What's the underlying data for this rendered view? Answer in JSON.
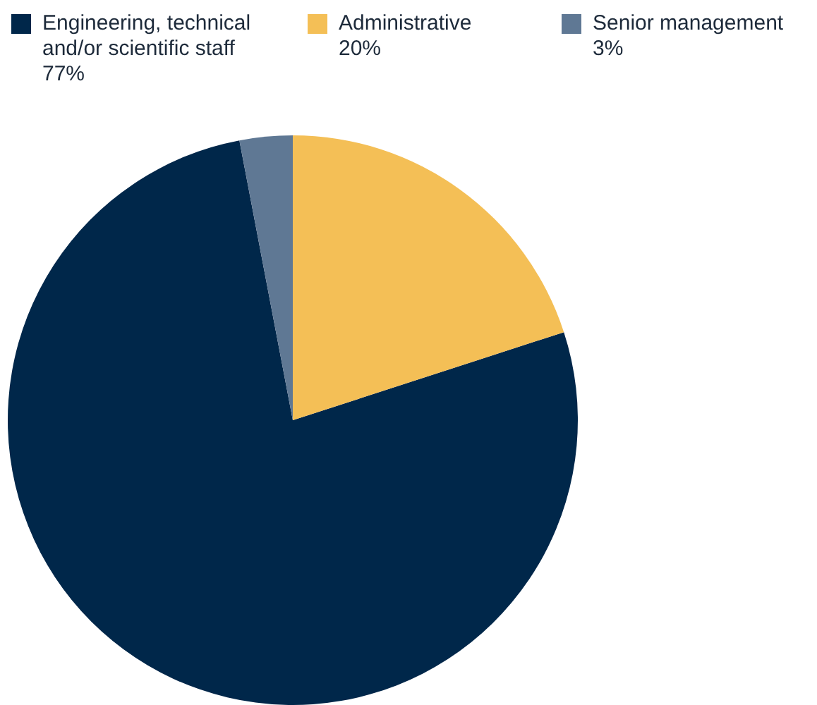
{
  "chart_data": {
    "type": "pie",
    "categories": [
      "Engineering, technical and/or scientific staff",
      "Administrative",
      "Senior management"
    ],
    "values": [
      77,
      20,
      3
    ],
    "colors": [
      "#00274a",
      "#f4bf56",
      "#5f7894"
    ],
    "value_labels": [
      "77%",
      "20%",
      "3%"
    ],
    "legend": "top"
  }
}
